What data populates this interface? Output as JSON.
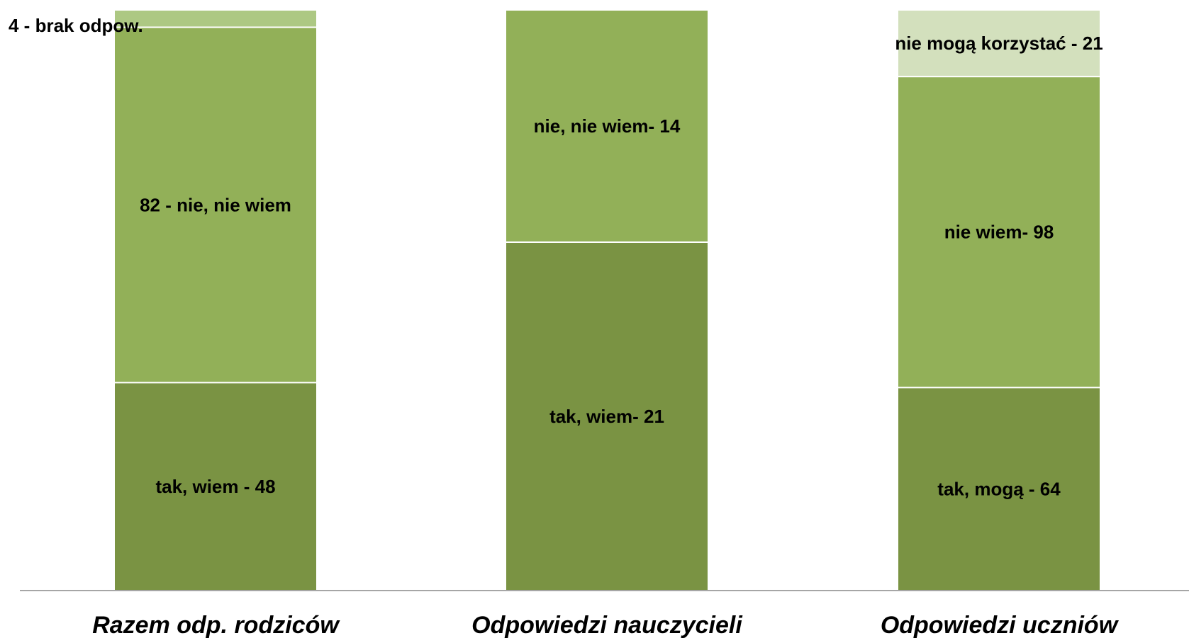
{
  "chart_data": {
    "type": "bar",
    "stacked": "percent",
    "categories": [
      "Razem odp. rodziców",
      "Odpowiedzi nauczycieli",
      "Odpowiedzi uczniów"
    ],
    "bars": [
      {
        "category": "Razem odp. rodziców",
        "segments": [
          {
            "value": 48,
            "label": "tak, wiem - 48",
            "color": "#7a9343"
          },
          {
            "value": 82,
            "label": "82 - nie, nie wiem",
            "color": "#92b058"
          },
          {
            "value": 4,
            "label": "4 - brak odpow.",
            "color": "#adc883",
            "label_position": "outside-left"
          }
        ]
      },
      {
        "category": "Odpowiedzi nauczycieli",
        "segments": [
          {
            "value": 21,
            "label": "tak, wiem- 21",
            "color": "#7a9343"
          },
          {
            "value": 14,
            "label": "nie, nie wiem- 14",
            "color": "#92b058"
          }
        ]
      },
      {
        "category": "Odpowiedzi uczniów",
        "segments": [
          {
            "value": 64,
            "label": "tak, mogą - 64",
            "color": "#7a9343"
          },
          {
            "value": 98,
            "label": "nie wiem- 98",
            "color": "#92b058"
          },
          {
            "value": 21,
            "label": "nie mogą korzystać - 21",
            "color": "#d3e0bd"
          }
        ]
      }
    ],
    "ylim": [
      0,
      100
    ],
    "grid": false,
    "legend": "none",
    "axis_color": "#a6a6a6"
  }
}
